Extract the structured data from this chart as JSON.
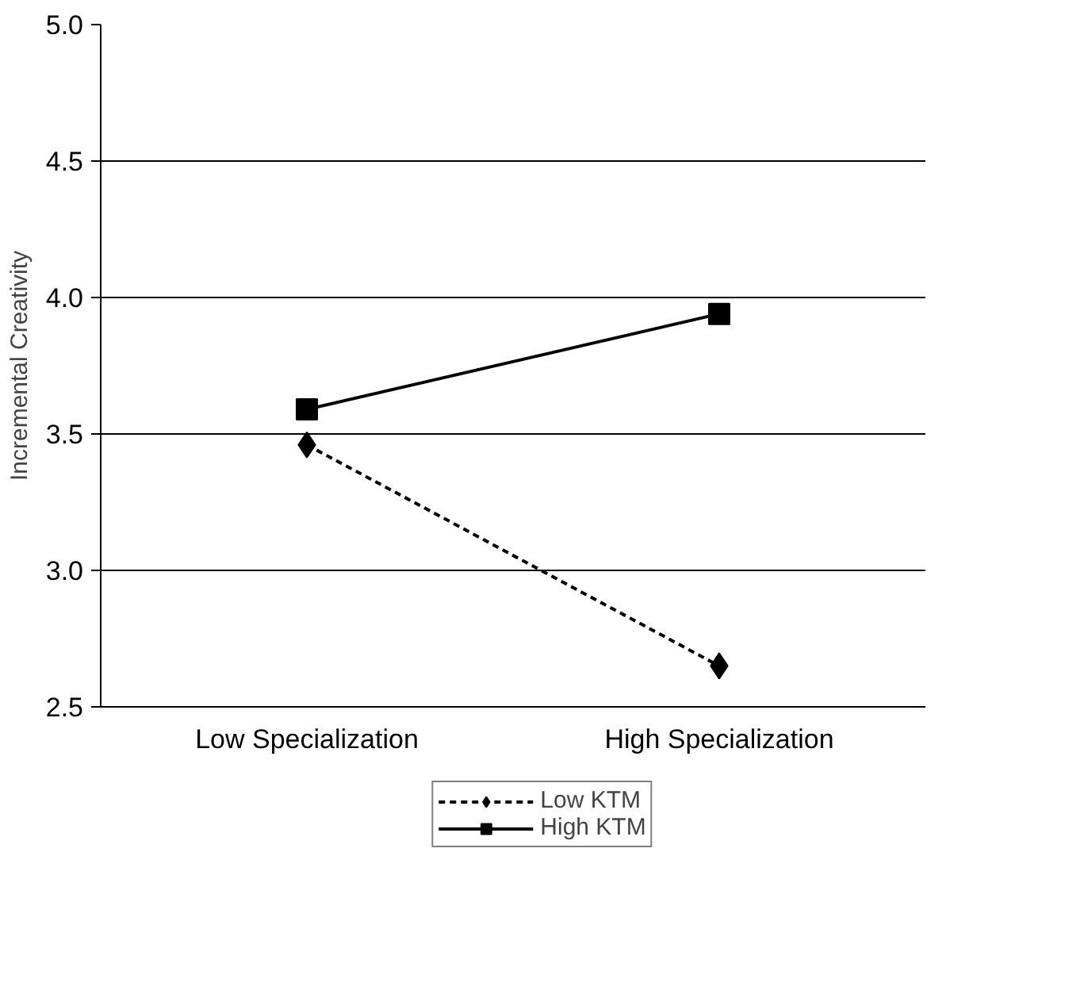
{
  "chart_data": {
    "type": "line",
    "ylabel": "Incremental Creativity",
    "categories": [
      "Low Specialization",
      "High Specialization"
    ],
    "series": [
      {
        "name": "Low KTM",
        "color": "#000000",
        "values": [
          3.46,
          2.65
        ],
        "marker": "diamond",
        "line_style": "dashed"
      },
      {
        "name": "High KTM",
        "color": "#000000",
        "values": [
          3.59,
          3.94
        ],
        "marker": "square",
        "line_style": "solid"
      }
    ],
    "ylim": [
      2.5,
      5.0
    ],
    "yticks": [
      {
        "value": 2.5,
        "label": "2.5"
      },
      {
        "value": 3.0,
        "label": "3.0"
      },
      {
        "value": 3.5,
        "label": "3.5"
      },
      {
        "value": 4.0,
        "label": "4.0"
      },
      {
        "value": 4.5,
        "label": "4.5"
      },
      {
        "value": 5.0,
        "label": "5.0"
      }
    ],
    "grid": "y",
    "legend": "bottom"
  }
}
